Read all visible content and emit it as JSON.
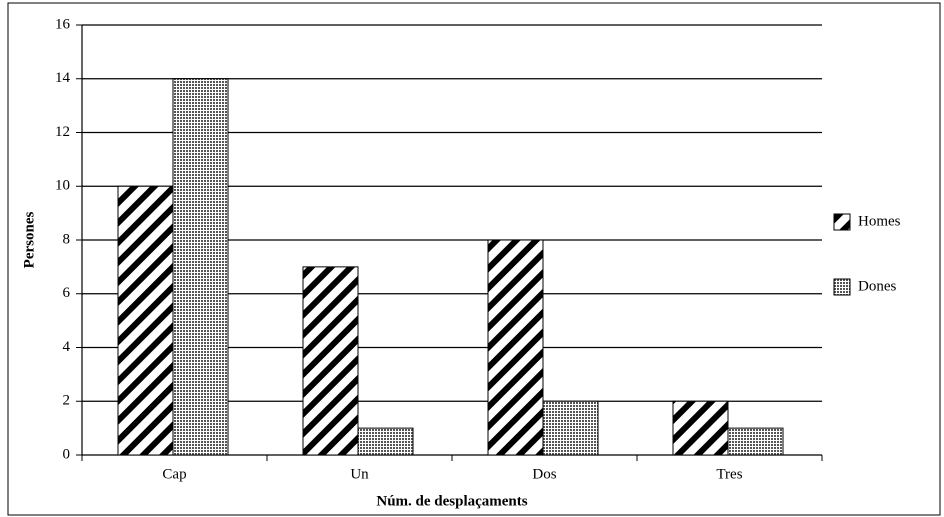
{
  "chart_data": {
    "type": "bar",
    "xlabel": "Núm. de desplaçaments",
    "ylabel": "Persones",
    "categories": [
      "Cap",
      "Un",
      "Dos",
      "Tres"
    ],
    "series": [
      {
        "name": "Homes",
        "color": "#000000",
        "pattern": "diagonal",
        "values": [
          10,
          7,
          8,
          2
        ]
      },
      {
        "name": "Dones",
        "color": "#000000",
        "pattern": "crosshatch",
        "values": [
          14,
          1,
          2,
          1
        ]
      }
    ],
    "ylim": [
      0,
      16
    ],
    "yticks": [
      0,
      2,
      4,
      6,
      8,
      10,
      12,
      14,
      16
    ],
    "grid": true,
    "legend": "right"
  }
}
